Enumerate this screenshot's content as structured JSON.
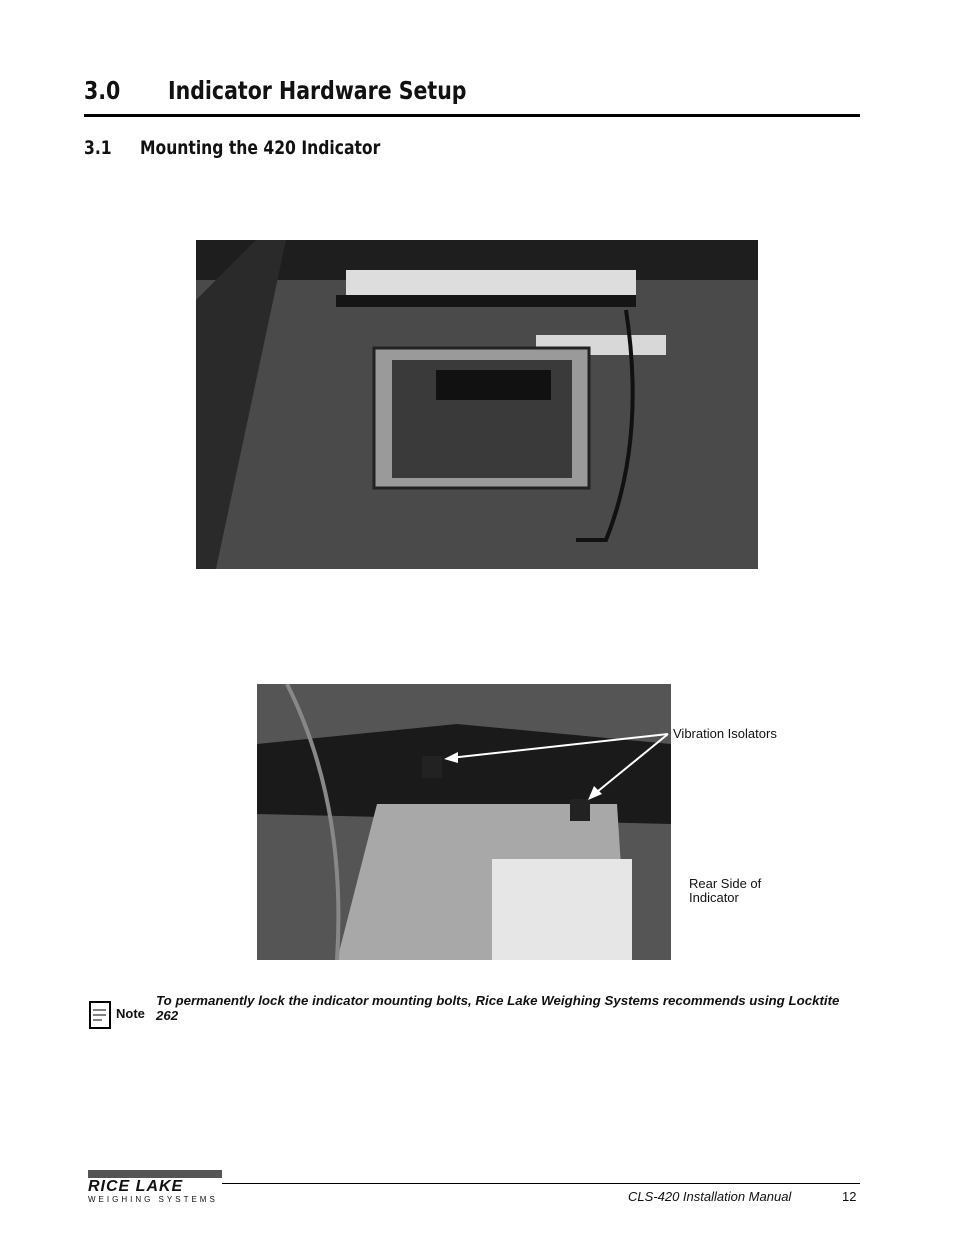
{
  "section": {
    "number": "3.0",
    "title": "Indicator Hardware Setup"
  },
  "subsection": {
    "number": "3.1",
    "title": "Mounting the 420 Indicator"
  },
  "figure2": {
    "callouts": [
      "Vibration Isolators",
      "Rear Side of",
      "Indicator"
    ]
  },
  "note": {
    "icon_label": "Note",
    "text": "To permanently lock the indicator mounting bolts, Rice Lake Weighing Systems recommends using Locktite 262"
  },
  "footer": {
    "logo": "RICE LAKE",
    "logo_sub": "WEIGHING SYSTEMS",
    "manual": "CLS-420 Installation Manual",
    "page": "12"
  }
}
